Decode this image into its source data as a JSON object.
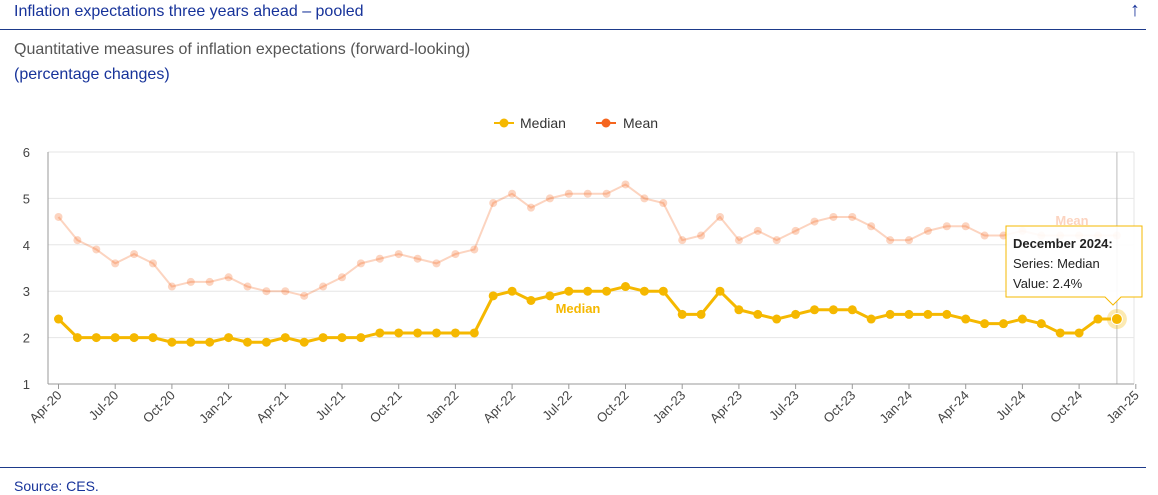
{
  "header": {
    "title": "Inflation expectations three years ahead – pooled",
    "arrow": "↑"
  },
  "subtitle": "Quantitative measures of inflation expectations (forward-looking)",
  "subtitle_units": "(percentage changes)",
  "source": "Source: CES.",
  "tooltip": {
    "title": "December 2024:",
    "series": "Series: Median",
    "value": "Value: 2.4%"
  },
  "chart_data": {
    "type": "line",
    "title": "",
    "xlabel": "",
    "ylabel": "",
    "ylim": [
      1,
      6
    ],
    "yticks": [
      1,
      2,
      3,
      4,
      5,
      6
    ],
    "xtick_labels": [
      "Apr-20",
      "Jul-20",
      "Oct-20",
      "Jan-21",
      "Apr-21",
      "Jul-21",
      "Oct-21",
      "Jan-22",
      "Apr-22",
      "Jul-22",
      "Oct-22",
      "Jan-23",
      "Apr-23",
      "Jul-23",
      "Oct-23",
      "Jan-24",
      "Apr-24",
      "Jul-24",
      "Oct-24",
      "Jan-25"
    ],
    "x": [
      "Apr-20",
      "May-20",
      "Jun-20",
      "Jul-20",
      "Aug-20",
      "Sep-20",
      "Oct-20",
      "Nov-20",
      "Dec-20",
      "Jan-21",
      "Feb-21",
      "Mar-21",
      "Apr-21",
      "May-21",
      "Jun-21",
      "Jul-21",
      "Aug-21",
      "Sep-21",
      "Oct-21",
      "Nov-21",
      "Dec-21",
      "Jan-22",
      "Feb-22",
      "Mar-22",
      "Apr-22",
      "May-22",
      "Jun-22",
      "Jul-22",
      "Aug-22",
      "Sep-22",
      "Oct-22",
      "Nov-22",
      "Dec-22",
      "Jan-23",
      "Feb-23",
      "Mar-23",
      "Apr-23",
      "May-23",
      "Jun-23",
      "Jul-23",
      "Aug-23",
      "Sep-23",
      "Oct-23",
      "Nov-23",
      "Dec-23",
      "Jan-24",
      "Feb-24",
      "Mar-24",
      "Apr-24",
      "May-24",
      "Jun-24",
      "Jul-24",
      "Aug-24",
      "Sep-24",
      "Oct-24",
      "Nov-24",
      "Dec-24"
    ],
    "legend": {
      "placement": "top-center",
      "entries": [
        "Median",
        "Mean"
      ]
    },
    "grid": true,
    "series": [
      {
        "name": "Median",
        "color": "#f5b800",
        "emphasized": true,
        "label": "Median",
        "values": [
          2.4,
          2.0,
          2.0,
          2.0,
          2.0,
          2.0,
          1.9,
          1.9,
          1.9,
          2.0,
          1.9,
          1.9,
          2.0,
          1.9,
          2.0,
          2.0,
          2.0,
          2.1,
          2.1,
          2.1,
          2.1,
          2.1,
          2.1,
          2.9,
          3.0,
          2.8,
          2.9,
          3.0,
          3.0,
          3.0,
          3.1,
          3.0,
          3.0,
          2.5,
          2.5,
          3.0,
          2.6,
          2.5,
          2.4,
          2.5,
          2.6,
          2.6,
          2.6,
          2.4,
          2.5,
          2.5,
          2.5,
          2.5,
          2.4,
          2.3,
          2.3,
          2.4,
          2.3,
          2.1,
          2.1,
          2.4,
          2.4
        ]
      },
      {
        "name": "Mean",
        "color": "#f5651e",
        "emphasized": false,
        "label": "Mean",
        "values": [
          4.6,
          4.1,
          3.9,
          3.6,
          3.8,
          3.6,
          3.1,
          3.2,
          3.2,
          3.3,
          3.1,
          3.0,
          3.0,
          2.9,
          3.1,
          3.3,
          3.6,
          3.7,
          3.8,
          3.7,
          3.6,
          3.8,
          3.9,
          4.9,
          5.1,
          4.8,
          5.0,
          5.1,
          5.1,
          5.1,
          5.3,
          5.0,
          4.9,
          4.1,
          4.2,
          4.6,
          4.1,
          4.3,
          4.1,
          4.3,
          4.5,
          4.6,
          4.6,
          4.4,
          4.1,
          4.1,
          4.3,
          4.4,
          4.4,
          4.2,
          4.2,
          4.3,
          4.2,
          4.2,
          4.2,
          4.2,
          4.2
        ]
      }
    ],
    "highlighted_point": {
      "series": "Median",
      "x": "Dec-24",
      "value": 2.4
    }
  }
}
